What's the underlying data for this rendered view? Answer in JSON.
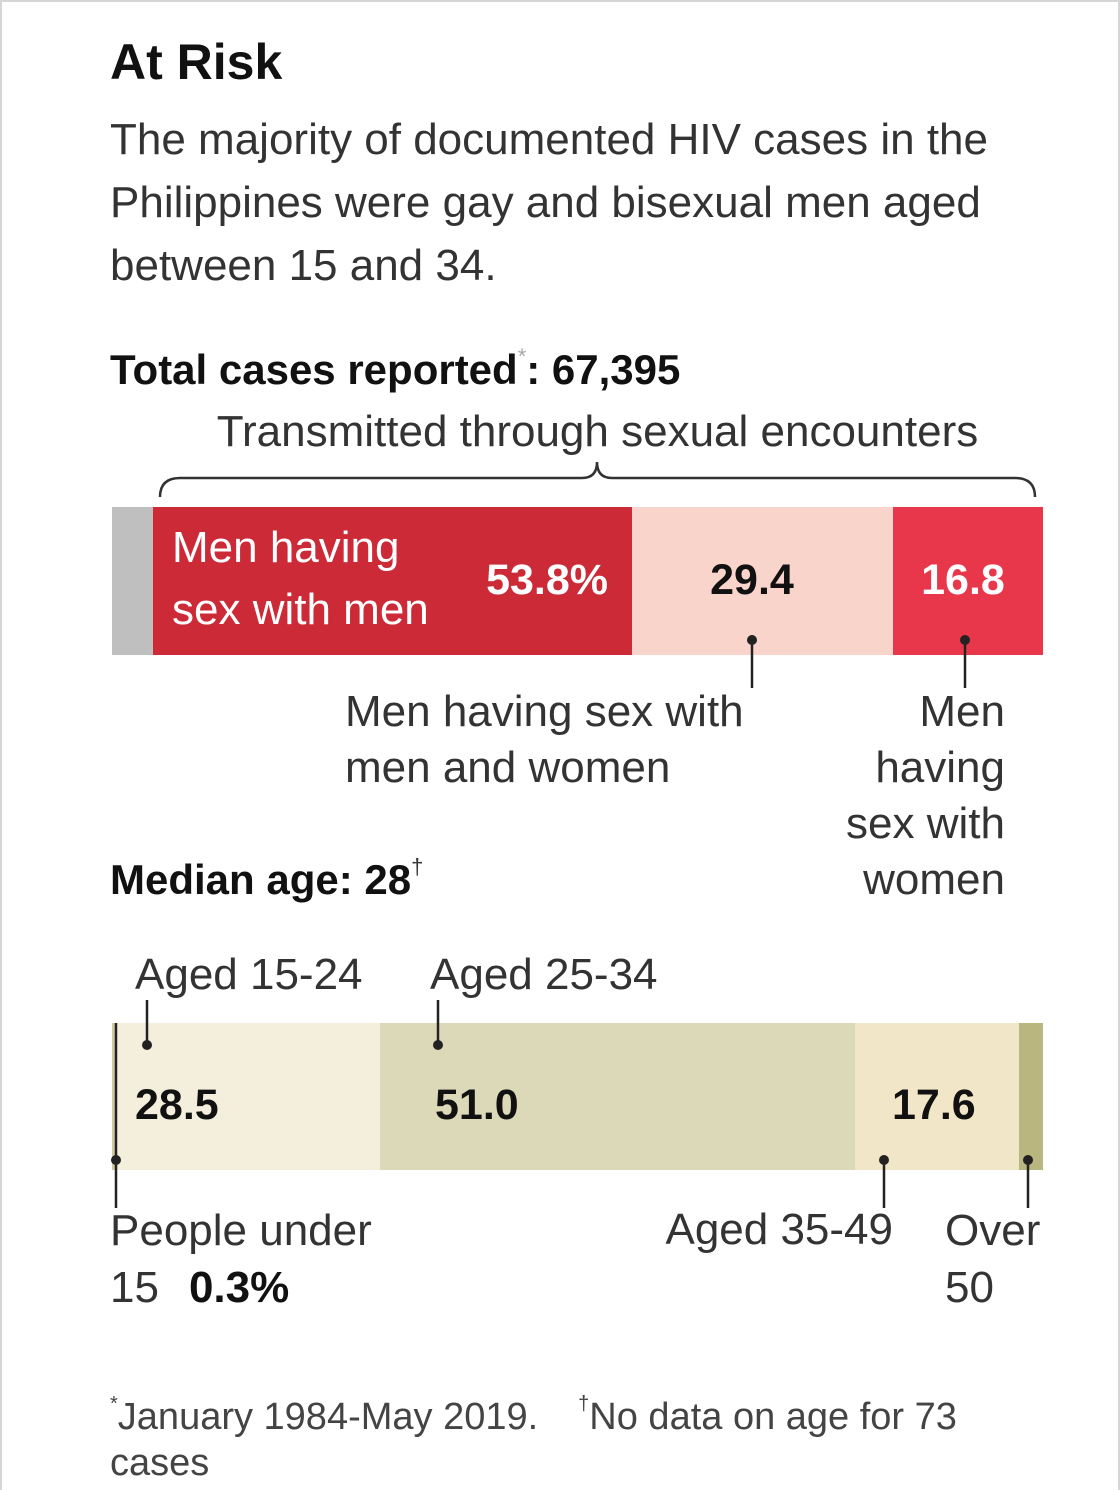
{
  "title": "At Risk",
  "subtitle_lines": [
    "The majority of documented HIV cases in the",
    "Philippines were gay and bisexual men aged",
    "between 15 and 34."
  ],
  "footnotes": {
    "first": {
      "mark": "*",
      "text": "January 1984-May 2019."
    },
    "second": {
      "mark": "†",
      "lines": [
        "No data on age for 73",
        "cases"
      ]
    }
  },
  "colors": {
    "text": "#1a1a1a",
    "muted_text": "#333333",
    "leader_lines": "#222222"
  },
  "chart_data": [
    {
      "type": "bar",
      "orientation": "horizontal-stacked",
      "title": "Total cases reported",
      "title_mark": "*",
      "total_text": ": 67,395",
      "group_label": "Transmitted through sexual encounters",
      "other_color": "#bfbfbf",
      "segments": [
        {
          "label_lines": [
            "Men having",
            "sex with men"
          ],
          "value": 53.8,
          "value_label": "53.8%",
          "color": "#cb2a36"
        },
        {
          "label_lines": [
            "Men having sex with",
            "men and women"
          ],
          "value": 29.4,
          "value_label": "29.4",
          "color": "#f9d4cb"
        },
        {
          "label_lines": [
            "Men",
            "having",
            "sex with",
            "women"
          ],
          "value": 16.8,
          "value_label": "16.8",
          "color": "#e8374b"
        }
      ]
    },
    {
      "type": "bar",
      "orientation": "horizontal-stacked",
      "title": "Median age: 28",
      "title_mark": "†",
      "segments": [
        {
          "label_lines": [
            "People under",
            "15"
          ],
          "value": 0.3,
          "value_label": "0.3%",
          "color": "#cfcb9f"
        },
        {
          "label_lines": [
            "Aged 15-24"
          ],
          "value": 28.5,
          "value_label": "28.5",
          "color": "#f4efdc"
        },
        {
          "label_lines": [
            "Aged 25-34"
          ],
          "value": 51.0,
          "value_label": "51.0",
          "color": "#dcd9b9"
        },
        {
          "label_lines": [
            "Aged 35-49"
          ],
          "value": 17.6,
          "value_label": "17.6",
          "color": "#f1e6c7"
        },
        {
          "label_lines": [
            "Over",
            "50"
          ],
          "value": null,
          "color": "#bab67f"
        }
      ]
    }
  ]
}
